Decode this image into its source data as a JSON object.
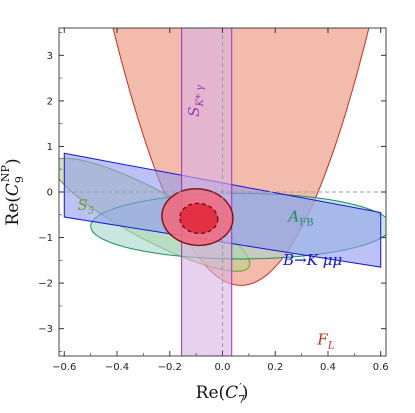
{
  "chart_data": {
    "type": "area",
    "x_axis": {
      "label_main": "Re(",
      "label_symbol": "C",
      "label_sub": "7",
      "label_prime": "′",
      "label_close": ")",
      "range": [
        -0.62,
        0.62
      ],
      "ticks": [
        -0.6,
        -0.4,
        -0.2,
        0.0,
        0.2,
        0.4,
        0.6
      ],
      "tick_labels": [
        "−0.6",
        "−0.4",
        "−0.2",
        "0.0",
        "0.2",
        "0.4",
        "0.6"
      ]
    },
    "y_axis": {
      "label_main": "Re(",
      "label_symbol": "C",
      "label_sub": "9",
      "label_sup": "NP",
      "label_close": ")",
      "range": [
        -3.6,
        3.6
      ],
      "ticks": [
        -3,
        -2,
        -1,
        0,
        1,
        2,
        3
      ],
      "tick_labels": [
        "−3",
        "−2",
        "−1",
        "0",
        "1",
        "2",
        "3"
      ]
    },
    "regions": [
      {
        "id": "FL",
        "label": "F",
        "label_sub": "L",
        "color": "#c0301e",
        "fill": "#f1b7a8",
        "type": "parabola_above",
        "vertex": [
          0.07,
          -2.05
        ],
        "curvature": 24,
        "label_at": [
          0.36,
          -3.35
        ]
      },
      {
        "id": "S5",
        "label": "S",
        "label_sub": "5",
        "color": "#6b9d21",
        "fill": "#b9d48a",
        "type": "ellipse",
        "center": [
          -0.27,
          -0.5
        ],
        "semi_axes": [
          0.42,
          0.55
        ],
        "rotation_deg": -28,
        "label_at": [
          -0.55,
          -0.4
        ]
      },
      {
        "id": "AFB",
        "label": "A",
        "label_sub": "FB",
        "color": "#1b8f5a",
        "fill": "#a6d5cc",
        "type": "ellipse",
        "center": [
          0.07,
          -0.75
        ],
        "semi_axes": [
          0.57,
          0.72
        ],
        "rotation_deg": 0,
        "label_at": [
          0.25,
          -0.65
        ]
      },
      {
        "id": "BKmumu",
        "label": "B→K μμ",
        "color": "#1414d8",
        "fill": "#8f9af0",
        "type": "band",
        "upper": [
          [
            -0.6,
            0.85
          ],
          [
            0.6,
            -0.45
          ]
        ],
        "lower": [
          [
            -0.6,
            -0.55
          ],
          [
            0.6,
            -1.65
          ]
        ],
        "label_at": [
          0.23,
          -1.6
        ]
      },
      {
        "id": "SKstargamma",
        "label": "S",
        "label_sub": "K* γ",
        "color": "#9b34b5",
        "fill": "#d8b1e4",
        "type": "vertical_band",
        "x_range": [
          -0.155,
          0.035
        ],
        "label_at": [
          -0.15,
          1.65
        ]
      }
    ],
    "combined_fit": {
      "outer": {
        "center": [
          -0.095,
          -0.55
        ],
        "semi_axes": [
          0.135,
          0.62
        ],
        "rotation_deg": -5,
        "fill": "#f2697b",
        "color": "#7a0f18"
      },
      "inner": {
        "center": [
          -0.09,
          -0.58
        ],
        "semi_axes": [
          0.072,
          0.33
        ],
        "rotation_deg": -5,
        "fill": "#e22a3c",
        "color": "#55080e"
      }
    },
    "reference_lines": {
      "x": 0.0,
      "y": 0.0
    },
    "grid": false
  }
}
